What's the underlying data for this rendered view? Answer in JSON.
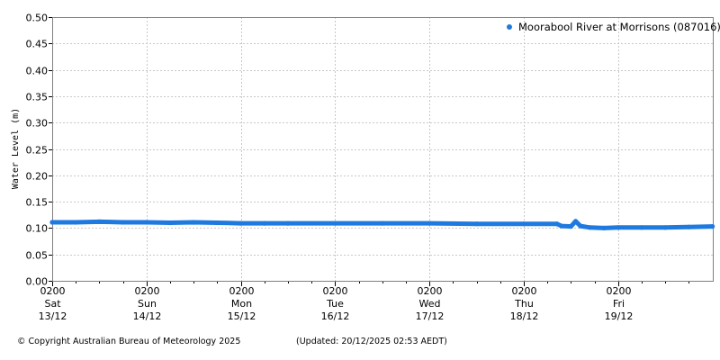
{
  "chart_data": {
    "type": "scatter",
    "ylabel": "Water Level (m)",
    "ylim": [
      0,
      0.5
    ],
    "yticks": [
      "0.00",
      "0.05",
      "0.10",
      "0.15",
      "0.20",
      "0.25",
      "0.30",
      "0.35",
      "0.40",
      "0.45",
      "0.50"
    ],
    "x_range_days": [
      0,
      7
    ],
    "xticks": [
      {
        "time": "0200",
        "day": "Sat",
        "date": "13/12"
      },
      {
        "time": "0200",
        "day": "Sun",
        "date": "14/12"
      },
      {
        "time": "0200",
        "day": "Mon",
        "date": "15/12"
      },
      {
        "time": "0200",
        "day": "Tue",
        "date": "16/12"
      },
      {
        "time": "0200",
        "day": "Wed",
        "date": "17/12"
      },
      {
        "time": "0200",
        "day": "Thu",
        "date": "18/12"
      },
      {
        "time": "0200",
        "day": "Fri",
        "date": "19/12"
      }
    ],
    "grid": true,
    "legend_position": "top-right",
    "series": [
      {
        "name": "Moorabool River at Morrisons (087016)",
        "color": "#1f7ae0",
        "points": [
          {
            "x": 0.0,
            "y": 0.111
          },
          {
            "x": 0.25,
            "y": 0.111
          },
          {
            "x": 0.5,
            "y": 0.112
          },
          {
            "x": 0.75,
            "y": 0.111
          },
          {
            "x": 1.0,
            "y": 0.111
          },
          {
            "x": 1.25,
            "y": 0.11
          },
          {
            "x": 1.5,
            "y": 0.111
          },
          {
            "x": 1.75,
            "y": 0.11
          },
          {
            "x": 2.0,
            "y": 0.109
          },
          {
            "x": 2.25,
            "y": 0.109
          },
          {
            "x": 2.5,
            "y": 0.109
          },
          {
            "x": 3.0,
            "y": 0.109
          },
          {
            "x": 3.5,
            "y": 0.109
          },
          {
            "x": 4.0,
            "y": 0.109
          },
          {
            "x": 4.5,
            "y": 0.108
          },
          {
            "x": 5.0,
            "y": 0.108
          },
          {
            "x": 5.35,
            "y": 0.108
          },
          {
            "x": 5.4,
            "y": 0.104
          },
          {
            "x": 5.5,
            "y": 0.103
          },
          {
            "x": 5.55,
            "y": 0.113
          },
          {
            "x": 5.6,
            "y": 0.104
          },
          {
            "x": 5.7,
            "y": 0.101
          },
          {
            "x": 5.85,
            "y": 0.1
          },
          {
            "x": 6.0,
            "y": 0.101
          },
          {
            "x": 6.25,
            "y": 0.101
          },
          {
            "x": 6.5,
            "y": 0.101
          },
          {
            "x": 6.75,
            "y": 0.102
          },
          {
            "x": 7.0,
            "y": 0.103
          }
        ]
      }
    ]
  },
  "footer": {
    "copyright": "© Copyright Australian Bureau of Meteorology 2025",
    "updated": "(Updated: 20/12/2025 02:53 AEDT)"
  }
}
